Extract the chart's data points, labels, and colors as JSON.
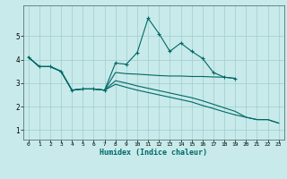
{
  "xlabel": "Humidex (Indice chaleur)",
  "bg_color": "#c8eaea",
  "grid_color": "#a0cccc",
  "line_color": "#006868",
  "xlim": [
    -0.5,
    23.5
  ],
  "ylim": [
    0.6,
    6.3
  ],
  "xticks": [
    0,
    1,
    2,
    3,
    4,
    5,
    6,
    7,
    8,
    9,
    10,
    11,
    12,
    13,
    14,
    15,
    16,
    17,
    18,
    19,
    20,
    21,
    22,
    23
  ],
  "yticks": [
    1,
    2,
    3,
    4,
    5
  ],
  "series": [
    {
      "x": [
        0,
        1,
        2,
        3,
        4,
        5,
        6,
        7,
        8,
        9,
        10,
        11,
        12,
        13,
        14,
        15,
        16,
        17,
        18,
        19
      ],
      "y": [
        4.1,
        3.7,
        3.7,
        3.5,
        2.7,
        2.75,
        2.75,
        2.7,
        3.85,
        3.8,
        4.3,
        5.75,
        5.1,
        4.35,
        4.7,
        4.35,
        4.05,
        3.45,
        3.25,
        3.2
      ],
      "marker": true
    },
    {
      "x": [
        0,
        1,
        2,
        3,
        4,
        5,
        6,
        7,
        8,
        9,
        10,
        11,
        12,
        13,
        14,
        15,
        16,
        17,
        18,
        19
      ],
      "y": [
        4.1,
        3.7,
        3.7,
        3.5,
        2.7,
        2.75,
        2.75,
        2.7,
        3.45,
        3.4,
        3.38,
        3.35,
        3.32,
        3.3,
        3.3,
        3.28,
        3.28,
        3.26,
        3.25,
        3.2
      ],
      "marker": false
    },
    {
      "x": [
        0,
        1,
        2,
        3,
        4,
        5,
        6,
        7,
        8,
        9,
        10,
        11,
        12,
        13,
        14,
        15,
        16,
        17,
        18,
        19,
        20,
        21,
        22,
        23
      ],
      "y": [
        4.1,
        3.7,
        3.7,
        3.5,
        2.7,
        2.75,
        2.75,
        2.7,
        3.1,
        3.0,
        2.88,
        2.78,
        2.68,
        2.58,
        2.48,
        2.38,
        2.25,
        2.1,
        1.95,
        1.8,
        1.55,
        1.45,
        1.45,
        1.3
      ],
      "marker": false
    },
    {
      "x": [
        0,
        1,
        2,
        3,
        4,
        5,
        6,
        7,
        8,
        9,
        10,
        11,
        12,
        13,
        14,
        15,
        16,
        17,
        18,
        19,
        20,
        21,
        22,
        23
      ],
      "y": [
        4.1,
        3.7,
        3.7,
        3.5,
        2.7,
        2.75,
        2.75,
        2.7,
        2.95,
        2.82,
        2.7,
        2.6,
        2.5,
        2.4,
        2.3,
        2.2,
        2.05,
        1.92,
        1.78,
        1.65,
        1.55,
        1.45,
        1.45,
        1.3
      ],
      "marker": false
    }
  ]
}
